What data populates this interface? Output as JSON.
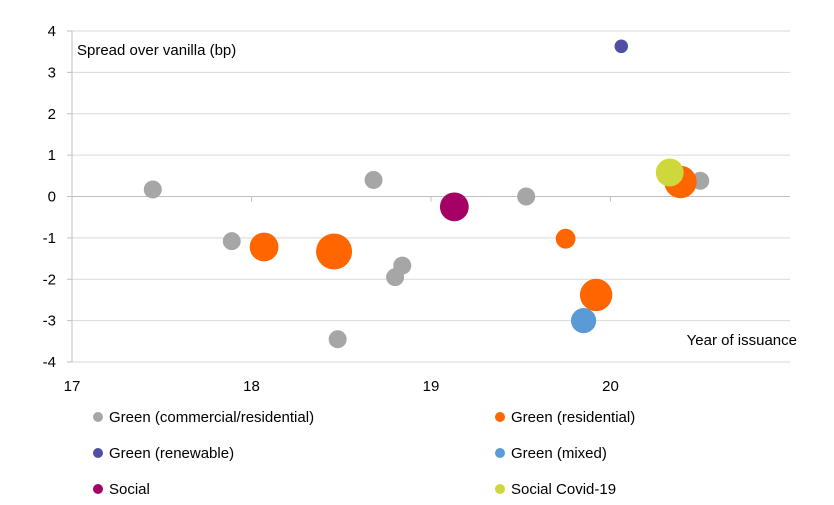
{
  "chart_data": {
    "type": "scatter",
    "ylabel": "Spread over vanilla (bp)",
    "xlabel": "Year of issuance",
    "xlim": [
      17,
      21
    ],
    "ylim": [
      -4,
      4
    ],
    "x_ticks": [
      17,
      18,
      19,
      20
    ],
    "y_ticks": [
      4,
      3,
      2,
      1,
      0,
      -1,
      -2,
      -3,
      -4
    ],
    "grid": "horizontal",
    "legend_position": "bottom",
    "series": [
      {
        "name": "Green (commercial/residential)",
        "color": "#a6a6a6",
        "points": [
          {
            "x": 17.45,
            "y": 0.17,
            "size": 1
          },
          {
            "x": 17.89,
            "y": -1.08,
            "size": 1
          },
          {
            "x": 18.48,
            "y": -3.45,
            "size": 1
          },
          {
            "x": 18.68,
            "y": 0.4,
            "size": 1
          },
          {
            "x": 18.8,
            "y": -1.95,
            "size": 1
          },
          {
            "x": 18.84,
            "y": -1.67,
            "size": 1
          },
          {
            "x": 19.53,
            "y": 0.0,
            "size": 1
          },
          {
            "x": 20.5,
            "y": 0.38,
            "size": 1
          }
        ]
      },
      {
        "name": "Green (residential)",
        "color": "#ff6600",
        "points": [
          {
            "x": 18.07,
            "y": -1.22,
            "size": 1.6
          },
          {
            "x": 18.46,
            "y": -1.33,
            "size": 2.0
          },
          {
            "x": 19.75,
            "y": -1.02,
            "size": 1.1
          },
          {
            "x": 19.92,
            "y": -2.38,
            "size": 1.8
          },
          {
            "x": 20.39,
            "y": 0.35,
            "size": 1.8
          }
        ]
      },
      {
        "name": "Green (renewable)",
        "color": "#4f4fa3",
        "points": [
          {
            "x": 20.06,
            "y": 3.63,
            "size": 0.75
          }
        ]
      },
      {
        "name": "Green (mixed)",
        "color": "#5b9bd5",
        "points": [
          {
            "x": 19.85,
            "y": -3.0,
            "size": 1.4
          }
        ]
      },
      {
        "name": "Social",
        "color": "#a50063",
        "points": [
          {
            "x": 19.13,
            "y": -0.25,
            "size": 1.6
          }
        ]
      },
      {
        "name": "Social Covid-19",
        "color": "#cfd83a",
        "points": [
          {
            "x": 20.33,
            "y": 0.58,
            "size": 1.55
          }
        ]
      }
    ]
  }
}
